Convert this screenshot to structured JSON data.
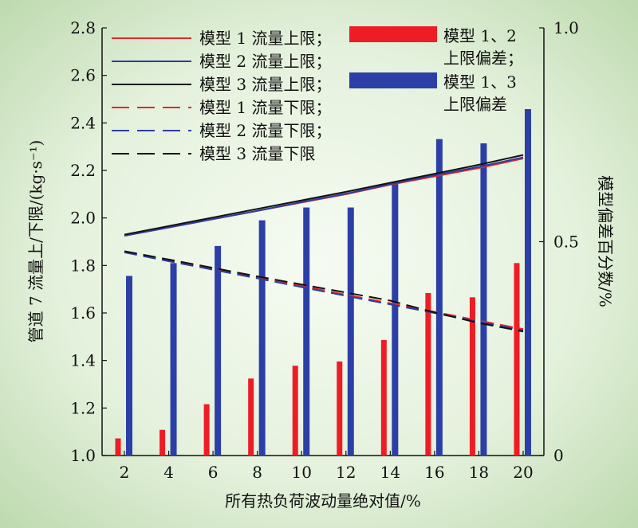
{
  "chart_data": {
    "type": "bar+line",
    "xlabel": "所有热负荷波动量绝对值/%",
    "ylabel_left": "管道 7 流量上/下限/(kg·s⁻¹)",
    "ylabel_right": "模型偏差百分数/%",
    "x": [
      2,
      4,
      6,
      8,
      10,
      12,
      14,
      16,
      18,
      20
    ],
    "x_ticks": [
      "2",
      "4",
      "6",
      "8",
      "10",
      "12",
      "14",
      "16",
      "18",
      "20"
    ],
    "ylim_left": [
      1.0,
      2.8
    ],
    "y_ticks_left": [
      "1.0",
      "1.2",
      "1.4",
      "1.6",
      "1.8",
      "2.0",
      "2.2",
      "2.4",
      "2.6",
      "2.8"
    ],
    "ylim_right": [
      0,
      1.0
    ],
    "y_ticks_right": [
      "0",
      "0.5",
      "1.0"
    ],
    "lines": [
      {
        "name": "模型 1 流量上限；",
        "color": "#e8262b",
        "dash": false,
        "values": [
          1.925,
          1.96,
          1.995,
          2.03,
          2.065,
          2.1,
          2.14,
          2.175,
          2.21,
          2.25
        ]
      },
      {
        "name": "模型 2 流量上限；",
        "color": "#2c3e9c",
        "dash": false,
        "values": [
          1.925,
          1.96,
          1.995,
          2.03,
          2.067,
          2.102,
          2.142,
          2.18,
          2.215,
          2.255
        ]
      },
      {
        "name": "模型 3 流量上限；",
        "color": "#111111",
        "dash": false,
        "values": [
          1.93,
          1.966,
          2.002,
          2.038,
          2.074,
          2.11,
          2.148,
          2.186,
          2.224,
          2.265
        ]
      },
      {
        "name": "模型 1 流量下限；",
        "color": "#e8262b",
        "dash": true,
        "values": [
          1.86,
          1.823,
          1.787,
          1.751,
          1.714,
          1.677,
          1.641,
          1.605,
          1.568,
          1.532
        ]
      },
      {
        "name": "模型 2 流量下限；",
        "color": "#2c3e9c",
        "dash": true,
        "values": [
          1.855,
          1.818,
          1.782,
          1.746,
          1.709,
          1.672,
          1.636,
          1.6,
          1.563,
          1.527
        ]
      },
      {
        "name": "模型 3 流量下限",
        "color": "#111111",
        "dash": true,
        "values": [
          1.86,
          1.825,
          1.79,
          1.754,
          1.72,
          1.686,
          1.652,
          1.602,
          1.558,
          1.522
        ]
      }
    ],
    "bars": [
      {
        "name_lines": [
          "模型 1、2",
          "上限偏差；"
        ],
        "color": "#ee1c25",
        "values": [
          0.04,
          0.06,
          0.12,
          0.18,
          0.21,
          0.22,
          0.27,
          0.38,
          0.37,
          0.45
        ]
      },
      {
        "name_lines": [
          "模型 1、3",
          "上限偏差"
        ],
        "color": "#2b3fa6",
        "values": [
          0.42,
          0.45,
          0.49,
          0.55,
          0.58,
          0.58,
          0.64,
          0.74,
          0.73,
          0.81
        ]
      }
    ],
    "legend_placement": "top-left (lines), top-right (bars)",
    "grid": false
  }
}
